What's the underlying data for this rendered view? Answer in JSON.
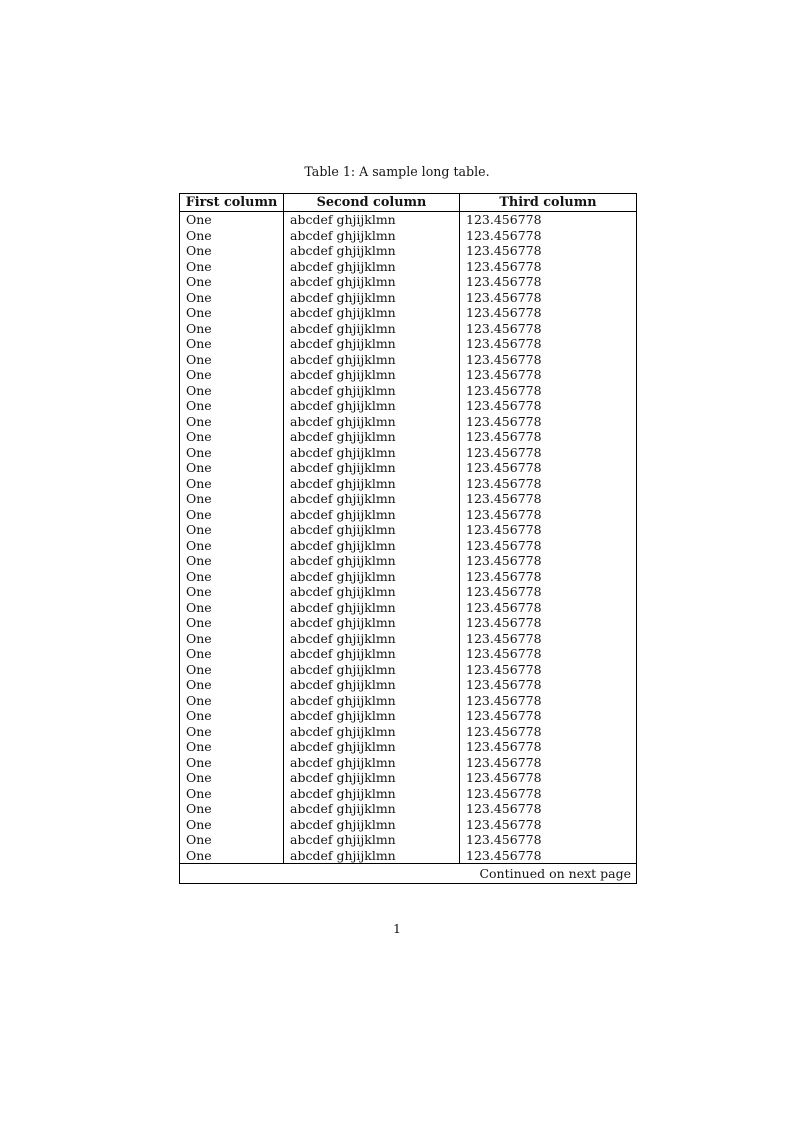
{
  "caption": "Table 1: A sample long table.",
  "page": {
    "number": "1"
  },
  "colors": {
    "text": "#141414",
    "border": "#000000",
    "background": "#ffffff"
  },
  "table": {
    "headers": [
      "First column",
      "Second column",
      "Third column"
    ],
    "row_count": 42,
    "footer": "Continued on next page",
    "rows": [
      [
        "One",
        "abcdef ghjijklmn",
        "123.456778"
      ],
      [
        "One",
        "abcdef ghjijklmn",
        "123.456778"
      ],
      [
        "One",
        "abcdef ghjijklmn",
        "123.456778"
      ],
      [
        "One",
        "abcdef ghjijklmn",
        "123.456778"
      ],
      [
        "One",
        "abcdef ghjijklmn",
        "123.456778"
      ],
      [
        "One",
        "abcdef ghjijklmn",
        "123.456778"
      ],
      [
        "One",
        "abcdef ghjijklmn",
        "123.456778"
      ],
      [
        "One",
        "abcdef ghjijklmn",
        "123.456778"
      ],
      [
        "One",
        "abcdef ghjijklmn",
        "123.456778"
      ],
      [
        "One",
        "abcdef ghjijklmn",
        "123.456778"
      ],
      [
        "One",
        "abcdef ghjijklmn",
        "123.456778"
      ],
      [
        "One",
        "abcdef ghjijklmn",
        "123.456778"
      ],
      [
        "One",
        "abcdef ghjijklmn",
        "123.456778"
      ],
      [
        "One",
        "abcdef ghjijklmn",
        "123.456778"
      ],
      [
        "One",
        "abcdef ghjijklmn",
        "123.456778"
      ],
      [
        "One",
        "abcdef ghjijklmn",
        "123.456778"
      ],
      [
        "One",
        "abcdef ghjijklmn",
        "123.456778"
      ],
      [
        "One",
        "abcdef ghjijklmn",
        "123.456778"
      ],
      [
        "One",
        "abcdef ghjijklmn",
        "123.456778"
      ],
      [
        "One",
        "abcdef ghjijklmn",
        "123.456778"
      ],
      [
        "One",
        "abcdef ghjijklmn",
        "123.456778"
      ],
      [
        "One",
        "abcdef ghjijklmn",
        "123.456778"
      ],
      [
        "One",
        "abcdef ghjijklmn",
        "123.456778"
      ],
      [
        "One",
        "abcdef ghjijklmn",
        "123.456778"
      ],
      [
        "One",
        "abcdef ghjijklmn",
        "123.456778"
      ],
      [
        "One",
        "abcdef ghjijklmn",
        "123.456778"
      ],
      [
        "One",
        "abcdef ghjijklmn",
        "123.456778"
      ],
      [
        "One",
        "abcdef ghjijklmn",
        "123.456778"
      ],
      [
        "One",
        "abcdef ghjijklmn",
        "123.456778"
      ],
      [
        "One",
        "abcdef ghjijklmn",
        "123.456778"
      ],
      [
        "One",
        "abcdef ghjijklmn",
        "123.456778"
      ],
      [
        "One",
        "abcdef ghjijklmn",
        "123.456778"
      ],
      [
        "One",
        "abcdef ghjijklmn",
        "123.456778"
      ],
      [
        "One",
        "abcdef ghjijklmn",
        "123.456778"
      ],
      [
        "One",
        "abcdef ghjijklmn",
        "123.456778"
      ],
      [
        "One",
        "abcdef ghjijklmn",
        "123.456778"
      ],
      [
        "One",
        "abcdef ghjijklmn",
        "123.456778"
      ],
      [
        "One",
        "abcdef ghjijklmn",
        "123.456778"
      ],
      [
        "One",
        "abcdef ghjijklmn",
        "123.456778"
      ],
      [
        "One",
        "abcdef ghjijklmn",
        "123.456778"
      ],
      [
        "One",
        "abcdef ghjijklmn",
        "123.456778"
      ],
      [
        "One",
        "abcdef ghjijklmn",
        "123.456778"
      ]
    ]
  }
}
